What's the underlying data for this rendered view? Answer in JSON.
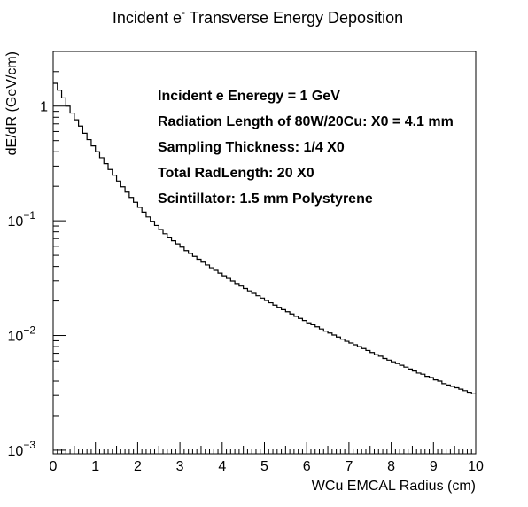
{
  "chart_data": {
    "type": "line",
    "style": "step-histogram",
    "title": "Incident e",
    "title_superscript": "-",
    "title_rest": " Transverse Energy Deposition",
    "xlabel": "WCu EMCAL Radius (cm)",
    "ylabel": "dE/dR (GeV/cm)",
    "xlim": [
      0,
      10
    ],
    "ylim": [
      0.00093,
      3.0
    ],
    "y_scale": "log",
    "grid": false,
    "x_ticks": [
      "0",
      "1",
      "2",
      "3",
      "4",
      "5",
      "6",
      "7",
      "8",
      "9",
      "10"
    ],
    "y_ticks": [
      {
        "base": "1",
        "exp": ""
      },
      {
        "base": "10",
        "exp": "−1"
      },
      {
        "base": "10",
        "exp": "−2"
      },
      {
        "base": "10",
        "exp": "−3"
      }
    ],
    "annotations": [
      "Incident e Eneregy = 1 GeV",
      "Radiation Length of 80W/20Cu: X0 = 4.1 mm",
      "Sampling Thickness: 1/4 X0",
      "Total RadLength: 20 X0",
      "Scintillator: 1.5 mm Polystyrene"
    ],
    "bin_width": 0.1,
    "series": [
      {
        "values": [
          1.58,
          1.38,
          1.18,
          1.0,
          0.87,
          0.76,
          0.67,
          0.58,
          0.51,
          0.45,
          0.4,
          0.355,
          0.315,
          0.28,
          0.25,
          0.222,
          0.198,
          0.178,
          0.16,
          0.145,
          0.131,
          0.119,
          0.108,
          0.099,
          0.091,
          0.084,
          0.077,
          0.072,
          0.067,
          0.063,
          0.059,
          0.055,
          0.052,
          0.049,
          0.0462,
          0.0436,
          0.0412,
          0.039,
          0.037,
          0.035,
          0.0332,
          0.0315,
          0.0299,
          0.0284,
          0.027,
          0.0257,
          0.0245,
          0.0233,
          0.0222,
          0.0212,
          0.0202,
          0.0193,
          0.0184,
          0.0176,
          0.0168,
          0.0161,
          0.0154,
          0.0147,
          0.0141,
          0.0135,
          0.0129,
          0.0124,
          0.0119,
          0.0114,
          0.0109,
          0.0105,
          0.0101,
          0.0097,
          0.0093,
          0.0089,
          0.0086,
          0.0083,
          0.008,
          0.0077,
          0.0074,
          0.0071,
          0.0068,
          0.0066,
          0.0063,
          0.0061,
          0.0059,
          0.0057,
          0.0055,
          0.0053,
          0.0051,
          0.0049,
          0.0047,
          0.0046,
          0.0044,
          0.0043,
          0.0041,
          0.004,
          0.0038,
          0.0037,
          0.0036,
          0.0035,
          0.0034,
          0.0033,
          0.0032,
          0.0031
        ]
      }
    ]
  }
}
